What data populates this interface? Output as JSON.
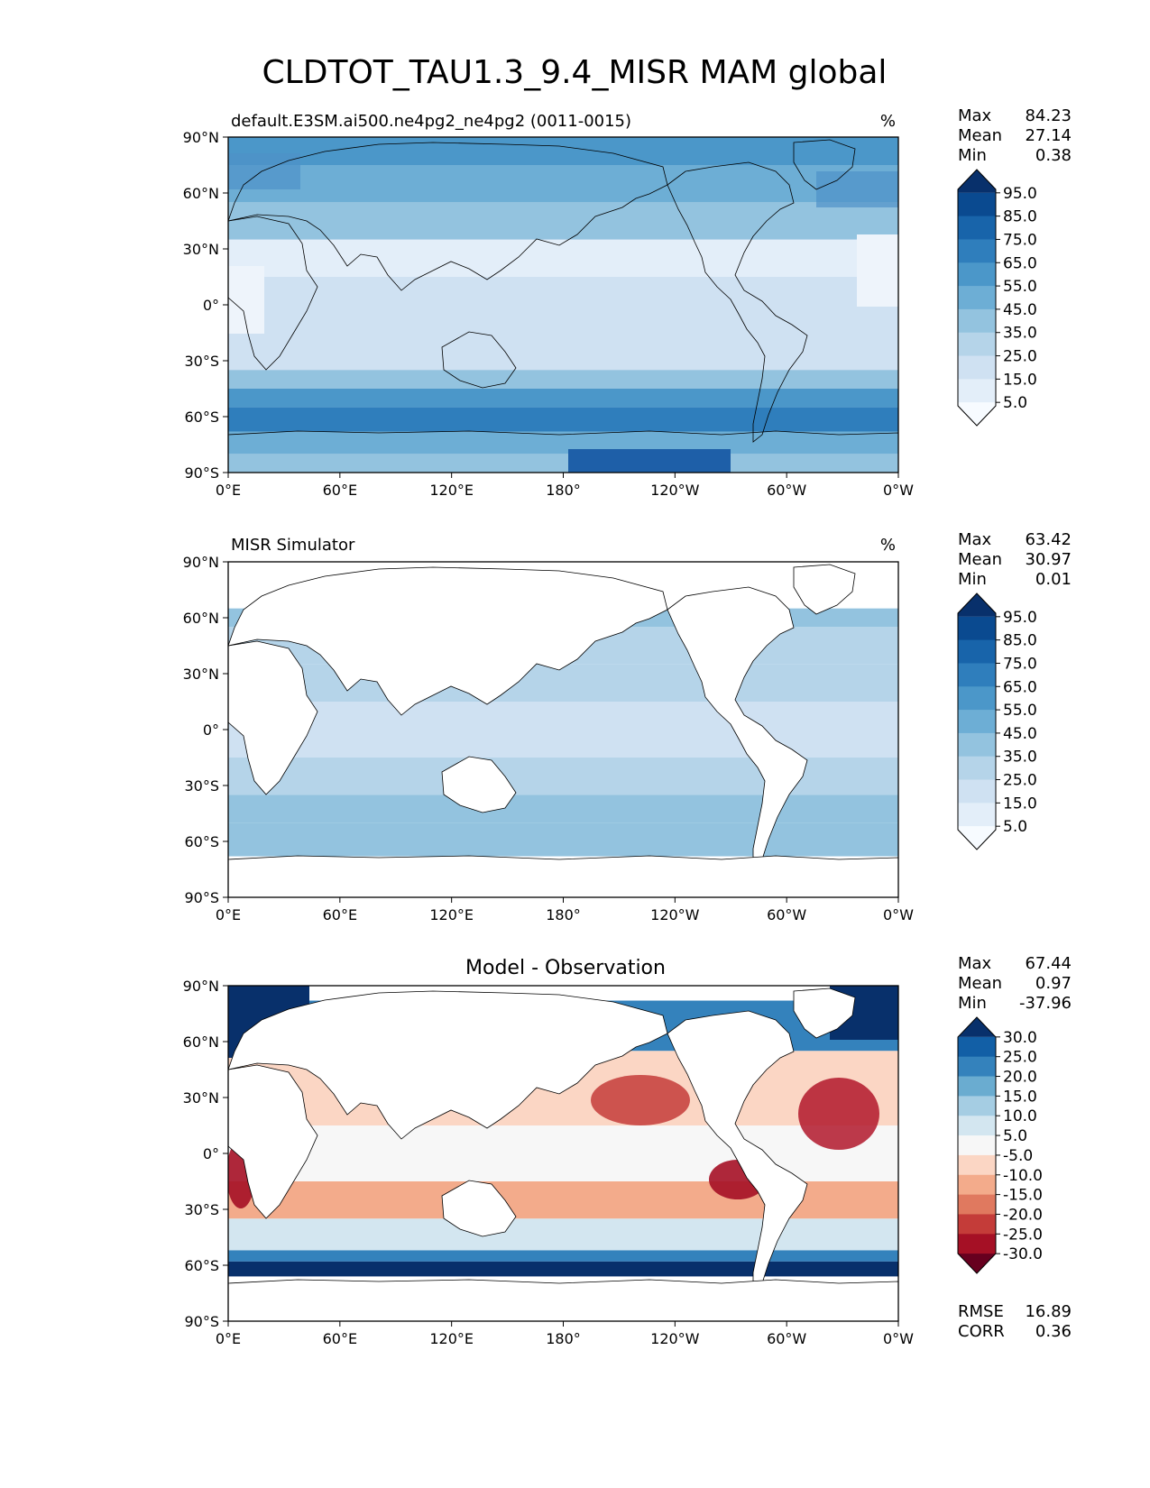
{
  "figure": {
    "title": "CLDTOT_TAU1.3_9.4_MISR MAM global"
  },
  "chart_data": [
    {
      "type": "heatmap",
      "title": "default.E3SM.ai500.ne4pg2_ne4pg2 (0011-0015)",
      "units": "%",
      "xticks": [
        "0°E",
        "60°E",
        "120°E",
        "180°",
        "120°W",
        "60°W",
        "0°W"
      ],
      "yticks": [
        "90°N",
        "60°N",
        "30°N",
        "0°",
        "30°S",
        "60°S",
        "90°S"
      ],
      "xlim": [
        0,
        360
      ],
      "ylim": [
        -90,
        90
      ],
      "stats": {
        "max_label": "Max",
        "max": "84.23",
        "mean_label": "Mean",
        "mean": "27.14",
        "min_label": "Min",
        "min": "0.38"
      },
      "colorbar": {
        "labels": [
          "95.0",
          "85.0",
          "75.0",
          "65.0",
          "55.0",
          "45.0",
          "35.0",
          "25.0",
          "15.0",
          "5.0"
        ]
      },
      "zonal_bands": [
        {
          "lat": [
            75,
            90
          ],
          "value": 62
        },
        {
          "lat": [
            55,
            75
          ],
          "value": 55
        },
        {
          "lat": [
            35,
            55
          ],
          "value": 40
        },
        {
          "lat": [
            15,
            35
          ],
          "value": 18
        },
        {
          "lat": [
            -15,
            15
          ],
          "value": 22
        },
        {
          "lat": [
            -35,
            -15
          ],
          "value": 20
        },
        {
          "lat": [
            -45,
            -35
          ],
          "value": 45
        },
        {
          "lat": [
            -55,
            -45
          ],
          "value": 62
        },
        {
          "lat": [
            -68,
            -55
          ],
          "value": 78
        },
        {
          "lat": [
            -80,
            -68
          ],
          "value": 55
        },
        {
          "lat": [
            -90,
            -80
          ],
          "value": 40
        }
      ]
    },
    {
      "type": "heatmap",
      "title": "MISR Simulator",
      "units": "%",
      "xticks": [
        "0°E",
        "60°E",
        "120°E",
        "180°",
        "120°W",
        "60°W",
        "0°W"
      ],
      "yticks": [
        "90°N",
        "60°N",
        "30°N",
        "0°",
        "30°S",
        "60°S",
        "90°S"
      ],
      "xlim": [
        0,
        360
      ],
      "ylim": [
        -90,
        90
      ],
      "stats": {
        "max_label": "Max",
        "max": "63.42",
        "mean_label": "Mean",
        "mean": "30.97",
        "min_label": "Min",
        "min": "0.01"
      },
      "colorbar": {
        "labels": [
          "95.0",
          "85.0",
          "75.0",
          "65.0",
          "55.0",
          "45.0",
          "35.0",
          "25.0",
          "15.0",
          "5.0"
        ]
      },
      "zonal_bands": [
        {
          "lat": [
            55,
            65
          ],
          "value": 42
        },
        {
          "lat": [
            35,
            55
          ],
          "value": 38
        },
        {
          "lat": [
            15,
            35
          ],
          "value": 33
        },
        {
          "lat": [
            -15,
            15
          ],
          "value": 28
        },
        {
          "lat": [
            -35,
            -15
          ],
          "value": 36
        },
        {
          "lat": [
            -50,
            -35
          ],
          "value": 40
        },
        {
          "lat": [
            -68,
            -50
          ],
          "value": 48
        }
      ]
    },
    {
      "type": "heatmap",
      "title": "Model - Observation",
      "xticks": [
        "0°E",
        "60°E",
        "120°E",
        "180°",
        "120°W",
        "60°W",
        "0°W"
      ],
      "yticks": [
        "90°N",
        "60°N",
        "30°N",
        "0°",
        "30°S",
        "60°S",
        "90°S"
      ],
      "xlim": [
        0,
        360
      ],
      "ylim": [
        -90,
        90
      ],
      "stats": {
        "max_label": "Max",
        "max": "67.44",
        "mean_label": "Mean",
        "mean": "0.97",
        "min_label": "Min",
        "min": "-37.96",
        "rmse_label": "RMSE",
        "rmse": "16.89",
        "corr_label": "CORR",
        "corr": "0.36"
      },
      "colorbar": {
        "labels": [
          "30.0",
          "25.0",
          "20.0",
          "15.0",
          "10.0",
          "5.0",
          "-5.0",
          "-10.0",
          "-15.0",
          "-20.0",
          "-25.0",
          "-30.0"
        ]
      },
      "zonal_bands": [
        {
          "lat": [
            55,
            82
          ],
          "value": 22
        },
        {
          "lat": [
            15,
            55
          ],
          "value": -8
        },
        {
          "lat": [
            -15,
            15
          ],
          "value": -3
        },
        {
          "lat": [
            -35,
            -15
          ],
          "value": -14
        },
        {
          "lat": [
            -52,
            -35
          ],
          "value": 8
        },
        {
          "lat": [
            -58,
            -52
          ],
          "value": 20
        },
        {
          "lat": [
            -66,
            -58
          ],
          "value": 32
        }
      ]
    }
  ]
}
